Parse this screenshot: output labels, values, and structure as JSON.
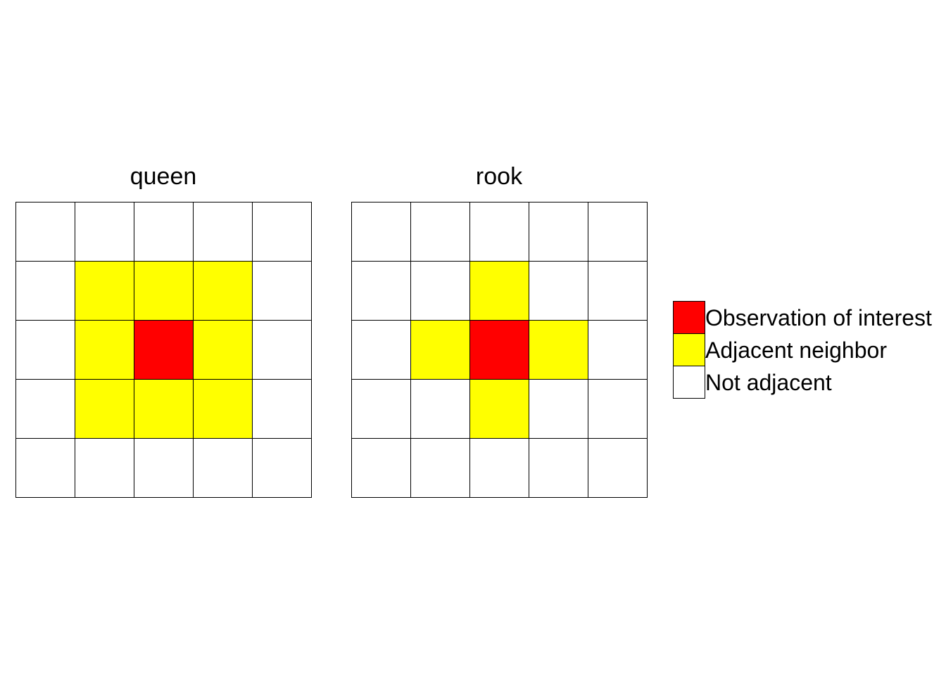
{
  "colors": {
    "observation": "#ff0000",
    "neighbor": "#ffff00",
    "not_adjacent": "#ffffff"
  },
  "panels": [
    {
      "title": "queen",
      "grid": [
        [
          "not_adjacent",
          "not_adjacent",
          "not_adjacent",
          "not_adjacent",
          "not_adjacent"
        ],
        [
          "not_adjacent",
          "neighbor",
          "neighbor",
          "neighbor",
          "not_adjacent"
        ],
        [
          "not_adjacent",
          "neighbor",
          "observation",
          "neighbor",
          "not_adjacent"
        ],
        [
          "not_adjacent",
          "neighbor",
          "neighbor",
          "neighbor",
          "not_adjacent"
        ],
        [
          "not_adjacent",
          "not_adjacent",
          "not_adjacent",
          "not_adjacent",
          "not_adjacent"
        ]
      ]
    },
    {
      "title": "rook",
      "grid": [
        [
          "not_adjacent",
          "not_adjacent",
          "not_adjacent",
          "not_adjacent",
          "not_adjacent"
        ],
        [
          "not_adjacent",
          "not_adjacent",
          "neighbor",
          "not_adjacent",
          "not_adjacent"
        ],
        [
          "not_adjacent",
          "neighbor",
          "observation",
          "neighbor",
          "not_adjacent"
        ],
        [
          "not_adjacent",
          "not_adjacent",
          "neighbor",
          "not_adjacent",
          "not_adjacent"
        ],
        [
          "not_adjacent",
          "not_adjacent",
          "not_adjacent",
          "not_adjacent",
          "not_adjacent"
        ]
      ]
    }
  ],
  "legend": [
    {
      "key": "observation",
      "label": "Observation of interest"
    },
    {
      "key": "neighbor",
      "label": "Adjacent neighbor"
    },
    {
      "key": "not_adjacent",
      "label": "Not adjacent"
    }
  ]
}
